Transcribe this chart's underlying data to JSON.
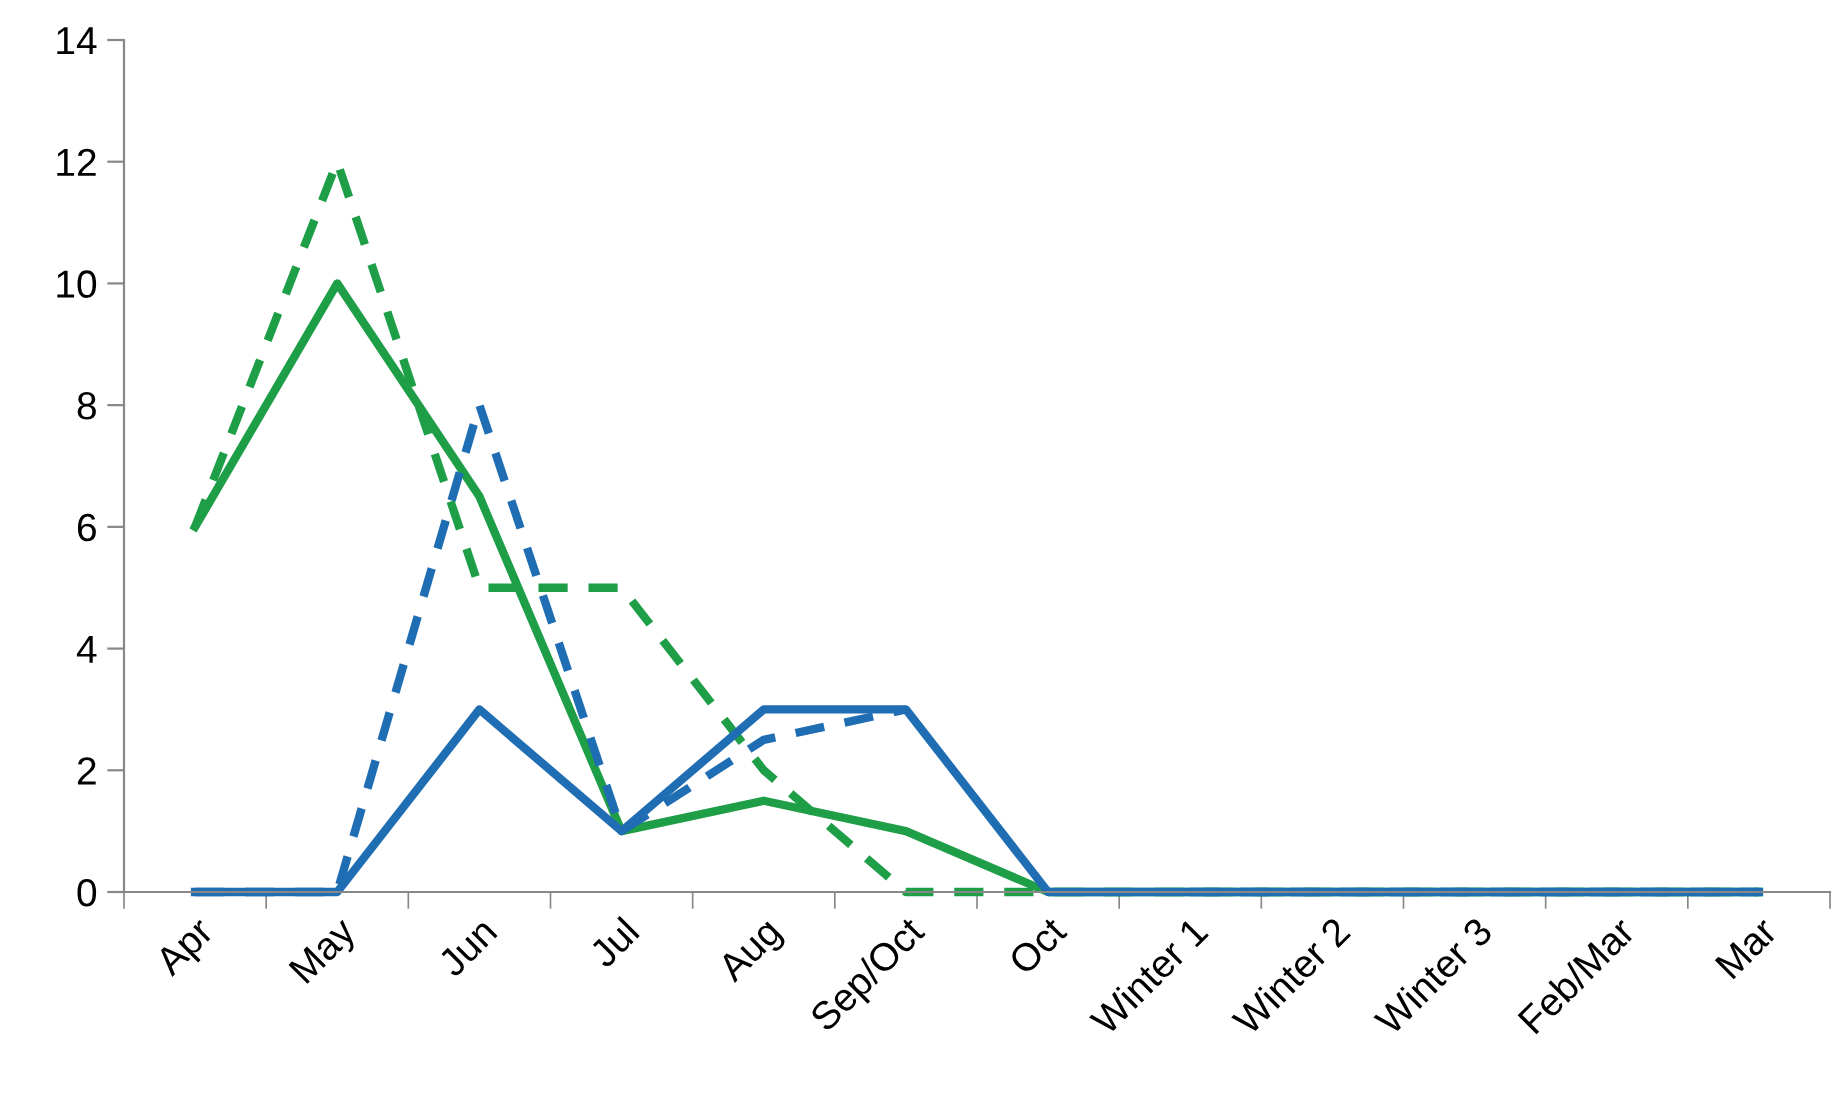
{
  "chart_data": {
    "type": "line",
    "categories": [
      "Apr",
      "May",
      "Jun",
      "Jul",
      "Aug",
      "Sep/Oct",
      "Oct",
      "Winter 1",
      "Winter 2",
      "Winter 3",
      "Feb/Mar",
      "Mar"
    ],
    "series": [
      {
        "color": "#1f9e48",
        "line_style": "solid",
        "values": [
          6,
          10,
          6.5,
          1,
          1.5,
          1,
          0,
          0,
          0,
          0,
          0,
          0
        ]
      },
      {
        "color": "#1f9e48",
        "line_style": "dashed",
        "values": [
          6,
          12,
          5,
          5,
          2,
          0,
          0,
          0,
          0,
          0,
          0,
          0
        ]
      },
      {
        "color": "#1f6db3",
        "line_style": "solid",
        "values": [
          0,
          0,
          3,
          1,
          3,
          3,
          0,
          0,
          0,
          0,
          0,
          0
        ]
      },
      {
        "color": "#1f6db3",
        "line_style": "dashed",
        "values": [
          0,
          0,
          8,
          1,
          2.5,
          3,
          null,
          0,
          0,
          0,
          0,
          0
        ]
      }
    ],
    "ylim": [
      0,
      14
    ],
    "yticks": [
      0,
      2,
      4,
      6,
      8,
      10,
      12,
      14
    ],
    "grid": false,
    "marker": "none"
  }
}
